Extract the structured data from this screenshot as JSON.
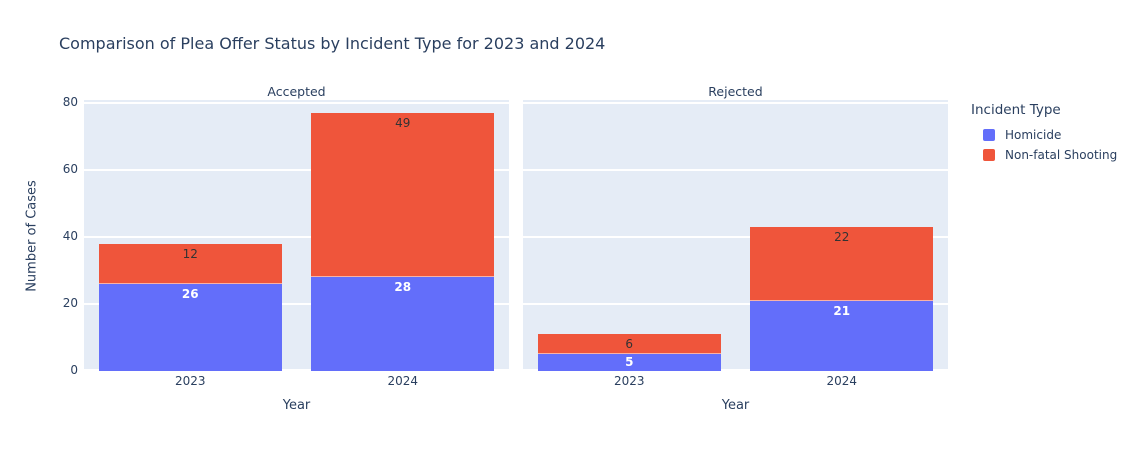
{
  "title": "Comparison of Plea Offer Status by Incident Type for 2023 and 2024",
  "colors": {
    "paper_bg": "#ffffff",
    "plot_bg": "#e5ecf6",
    "grid": "#ffffff",
    "text": "#2a3f5f",
    "homicide": "#636efa",
    "non_fatal_shooting": "#ef553b",
    "label_on_blue": "#ffffff",
    "label_on_red": "#333333"
  },
  "chart_data": {
    "type": "bar",
    "mode": "stacked",
    "title": "Comparison of Plea Offer Status by Incident Type for 2023 and 2024",
    "xlabel": "Year",
    "ylabel": "Number of Cases",
    "ylim": [
      0,
      81
    ],
    "yticks": [
      0,
      20,
      40,
      60,
      80
    ],
    "grid": "horizontal-white-on-lightblue",
    "categories": [
      "2023",
      "2024"
    ],
    "facets": [
      {
        "title": "Accepted",
        "series": [
          {
            "name": "Homicide",
            "color": "#636efa",
            "values": [
              26,
              28
            ]
          },
          {
            "name": "Non-fatal Shooting",
            "color": "#ef553b",
            "values": [
              12,
              49
            ]
          }
        ],
        "totals": [
          38,
          77
        ]
      },
      {
        "title": "Rejected",
        "series": [
          {
            "name": "Homicide",
            "color": "#636efa",
            "values": [
              5,
              21
            ]
          },
          {
            "name": "Non-fatal Shooting",
            "color": "#ef553b",
            "values": [
              6,
              22
            ]
          }
        ],
        "totals": [
          11,
          43
        ]
      }
    ],
    "legend": {
      "title": "Incident Type",
      "position": "right",
      "entries": [
        {
          "label": "Homicide",
          "color": "#636efa"
        },
        {
          "label": "Non-fatal Shooting",
          "color": "#ef553b"
        }
      ]
    }
  }
}
